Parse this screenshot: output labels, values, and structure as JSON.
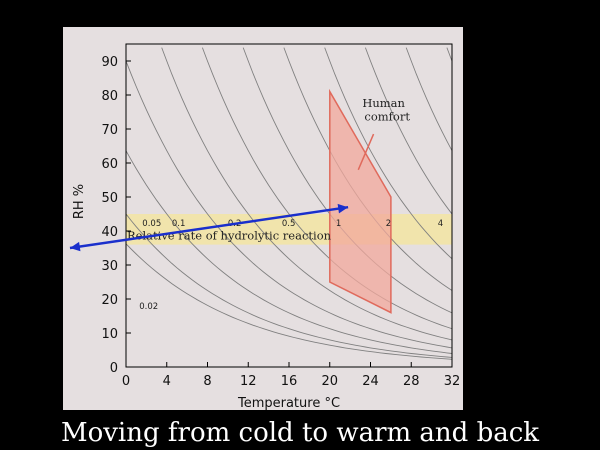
{
  "slide": {
    "caption": "Moving from cold to warm and back"
  },
  "colors": {
    "background": "#000000",
    "panel": "#e5dfe0",
    "band": "#f2e4a6",
    "comfort_fill": "#f2a89c",
    "comfort_edge": "#e06a5c",
    "arrow": "#1a2fcc",
    "isoline": "#808080"
  },
  "chart_data": {
    "type": "line",
    "xlabel": "Temperature °C",
    "ylabel": "RH %",
    "xlim": [
      0,
      32
    ],
    "ylim": [
      0,
      95
    ],
    "xticks": [
      0,
      4,
      8,
      12,
      16,
      20,
      24,
      28,
      32
    ],
    "yticks": [
      0,
      10,
      20,
      30,
      40,
      50,
      60,
      70,
      80,
      90
    ],
    "grid": false,
    "isolines": {
      "name": "Relative rate of hydrolytic reaction",
      "labels": [
        "0.02",
        "0.05",
        "0.1",
        "0.2",
        "0.5",
        "1",
        "2",
        "4"
      ]
    },
    "band": {
      "label": "Relative rate of hydrolytic reaction",
      "rh_range": [
        36,
        45
      ]
    },
    "comfort_zone": {
      "label_line1": "Human",
      "label_line2": "comfort",
      "polygon": [
        [
          20,
          81
        ],
        [
          20,
          25
        ],
        [
          26,
          16
        ],
        [
          26,
          50
        ]
      ]
    },
    "annotation_arrow": {
      "description": "double-headed arrow",
      "from": [
        -5.5,
        35
      ],
      "to": [
        21.8,
        47
      ]
    }
  }
}
